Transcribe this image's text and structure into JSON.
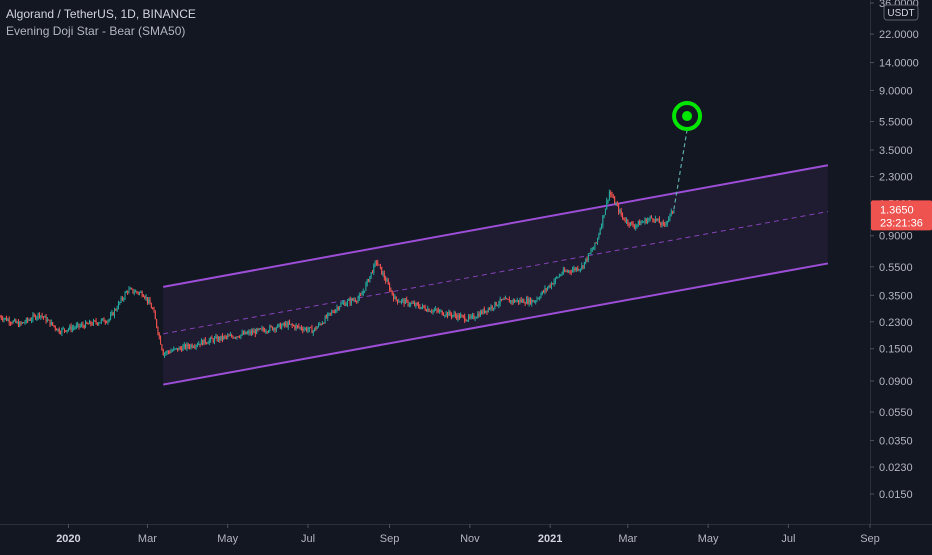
{
  "header": {
    "title": "Algorand / TetherUS, 1D, BINANCE",
    "indicator": "Evening Doji Star - Bear (SMA50)"
  },
  "colors": {
    "background": "#131722",
    "up": "#26a69a",
    "down": "#ef5350",
    "channel": "#9c4fd6",
    "target": "#00e600",
    "price_badge": "#ef5350"
  },
  "chart_data": {
    "type": "candlestick",
    "symbol": "Algorand / TetherUS",
    "interval": "1D",
    "exchange": "BINANCE",
    "y_scale": "log",
    "y_unit": "USDT",
    "y_ticks": [
      "36.0000",
      "22.0000",
      "14.0000",
      "9.0000",
      "5.5000",
      "3.5000",
      "2.3000",
      "1.5000",
      "0.9000",
      "0.5500",
      "0.3500",
      "0.2300",
      "0.1500",
      "0.0900",
      "0.0550",
      "0.0350",
      "0.0230",
      "0.0150"
    ],
    "y_tick_values": [
      36,
      22,
      14,
      9,
      5.5,
      3.5,
      2.3,
      1.5,
      0.9,
      0.55,
      0.35,
      0.23,
      0.15,
      0.09,
      0.055,
      0.035,
      0.023,
      0.015
    ],
    "x_ticks": [
      "2020",
      "Mar",
      "May",
      "Jul",
      "Sep",
      "Nov",
      "2021",
      "Mar",
      "May",
      "Jul",
      "Sep"
    ],
    "x_tick_dates": [
      "2020-01-01",
      "2020-03-01",
      "2020-05-01",
      "2020-07-01",
      "2020-09-01",
      "2020-11-01",
      "2021-01-01",
      "2021-03-01",
      "2021-05-01",
      "2021-07-01",
      "2021-09-01"
    ],
    "x_tick_bold": [
      true,
      false,
      false,
      false,
      false,
      false,
      true,
      false,
      false,
      false,
      false
    ],
    "x_range": [
      "2019-11-10",
      "2021-09-01"
    ],
    "price_path": [
      [
        "2019-11-10",
        0.25
      ],
      [
        "2019-11-25",
        0.22
      ],
      [
        "2019-12-10",
        0.26
      ],
      [
        "2019-12-25",
        0.2
      ],
      [
        "2020-01-15",
        0.22
      ],
      [
        "2020-02-01",
        0.24
      ],
      [
        "2020-02-15",
        0.38
      ],
      [
        "2020-02-27",
        0.36
      ],
      [
        "2020-03-05",
        0.28
      ],
      [
        "2020-03-13",
        0.14
      ],
      [
        "2020-03-25",
        0.15
      ],
      [
        "2020-04-15",
        0.17
      ],
      [
        "2020-05-15",
        0.19
      ],
      [
        "2020-06-15",
        0.22
      ],
      [
        "2020-07-05",
        0.2
      ],
      [
        "2020-07-25",
        0.3
      ],
      [
        "2020-08-10",
        0.34
      ],
      [
        "2020-08-22",
        0.6
      ],
      [
        "2020-09-05",
        0.33
      ],
      [
        "2020-10-01",
        0.28
      ],
      [
        "2020-11-01",
        0.24
      ],
      [
        "2020-11-25",
        0.32
      ],
      [
        "2020-12-20",
        0.32
      ],
      [
        "2021-01-10",
        0.5
      ],
      [
        "2021-01-25",
        0.55
      ],
      [
        "2021-02-05",
        0.8
      ],
      [
        "2021-02-15",
        1.8
      ],
      [
        "2021-02-25",
        1.2
      ],
      [
        "2021-03-05",
        1.05
      ],
      [
        "2021-03-20",
        1.2
      ],
      [
        "2021-03-28",
        1.05
      ],
      [
        "2021-04-05",
        1.365
      ]
    ],
    "channel": {
      "upper": [
        [
          "2020-03-13",
          0.4
        ],
        [
          "2021-07-31",
          2.75
        ]
      ],
      "middle": [
        [
          "2020-03-13",
          0.19
        ],
        [
          "2021-07-31",
          1.32
        ]
      ],
      "lower": [
        [
          "2020-03-13",
          0.085
        ],
        [
          "2021-07-31",
          0.58
        ]
      ]
    },
    "projection": {
      "from": [
        "2021-04-05",
        1.365
      ],
      "to": [
        "2021-04-15",
        6.0
      ]
    },
    "last_price": "1.3650",
    "countdown": "23:21:36"
  },
  "price_axis": {
    "unit_label": "USDT"
  }
}
